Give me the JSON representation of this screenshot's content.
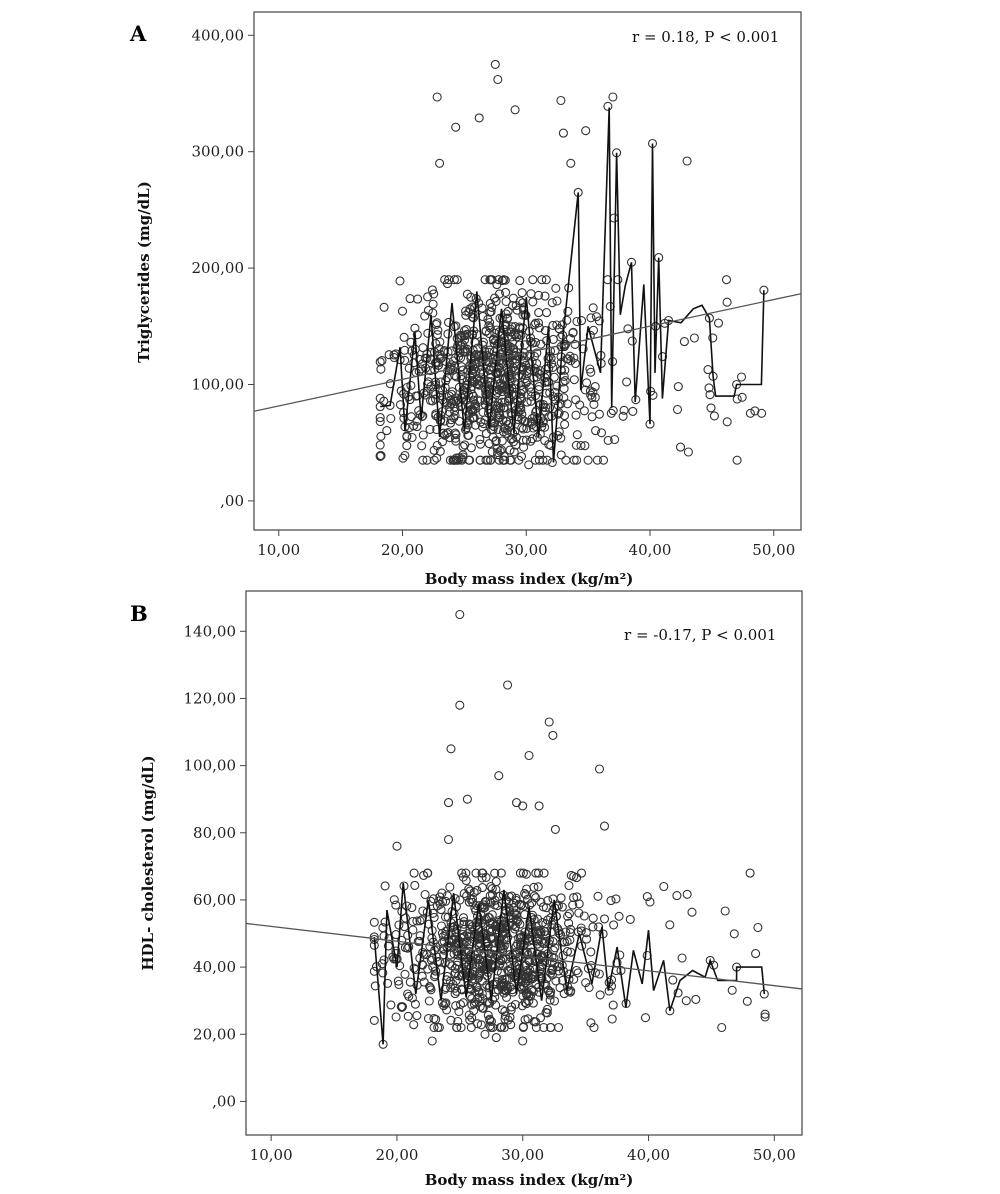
{
  "chart_data": [
    {
      "type": "scatter",
      "panel_label": "A",
      "annotation": "r = 0.18, P < 0.001",
      "xlabel": "Body mass index (kg/m²)",
      "ylabel": "Triglycerides (mg/dL)",
      "xlim": [
        8,
        52.2
      ],
      "ylim": [
        -25,
        420
      ],
      "xticks": [
        10,
        20,
        30,
        40,
        50
      ],
      "xtick_labels": [
        "10,00",
        "20,00",
        "30,00",
        "40,00",
        "50,00"
      ],
      "yticks": [
        0,
        100,
        200,
        300,
        400
      ],
      "ytick_labels": [
        ",00",
        "100,00",
        "200,00",
        "300,00",
        "400,00"
      ],
      "grid": false,
      "scatter_cloud": {
        "x_range": [
          18.2,
          49.3
        ],
        "x_center": 27.5,
        "y_core": [
          35,
          190
        ],
        "y_center": 105,
        "point_count": 900
      },
      "fit_line": {
        "x": [
          8,
          52.2
        ],
        "y": [
          77,
          178
        ]
      },
      "notable_points": [
        {
          "x": 27.5,
          "y": 375
        },
        {
          "x": 27.7,
          "y": 362
        },
        {
          "x": 22.8,
          "y": 347
        },
        {
          "x": 37.0,
          "y": 347
        },
        {
          "x": 32.8,
          "y": 344
        },
        {
          "x": 36.6,
          "y": 339
        },
        {
          "x": 29.1,
          "y": 336
        },
        {
          "x": 26.2,
          "y": 329
        },
        {
          "x": 24.3,
          "y": 321
        },
        {
          "x": 34.8,
          "y": 318
        },
        {
          "x": 33.0,
          "y": 316
        },
        {
          "x": 40.2,
          "y": 307
        },
        {
          "x": 37.3,
          "y": 299
        },
        {
          "x": 43.0,
          "y": 292
        },
        {
          "x": 23.0,
          "y": 290
        },
        {
          "x": 33.6,
          "y": 290
        },
        {
          "x": 34.2,
          "y": 265
        },
        {
          "x": 37.1,
          "y": 243
        },
        {
          "x": 38.5,
          "y": 205
        },
        {
          "x": 40.7,
          "y": 209
        },
        {
          "x": 49.2,
          "y": 181
        },
        {
          "x": 41.5,
          "y": 155
        },
        {
          "x": 44.8,
          "y": 157
        },
        {
          "x": 45.1,
          "y": 107
        },
        {
          "x": 47.0,
          "y": 100
        },
        {
          "x": 45.2,
          "y": 73
        },
        {
          "x": 43.1,
          "y": 42
        },
        {
          "x": 40.0,
          "y": 66
        },
        {
          "x": 18.2,
          "y": 81
        },
        {
          "x": 19.0,
          "y": 82
        },
        {
          "x": 19.8,
          "y": 189
        },
        {
          "x": 20.0,
          "y": 163
        },
        {
          "x": 30.2,
          "y": 31
        },
        {
          "x": 32.1,
          "y": 33
        },
        {
          "x": 35.0,
          "y": 35
        }
      ],
      "jagged_path": [
        {
          "x": 18.2,
          "y": 81
        },
        {
          "x": 19.0,
          "y": 82
        },
        {
          "x": 19.8,
          "y": 132
        },
        {
          "x": 20.2,
          "y": 60
        },
        {
          "x": 21.0,
          "y": 145
        },
        {
          "x": 21.5,
          "y": 70
        },
        {
          "x": 22.3,
          "y": 160
        },
        {
          "x": 23.0,
          "y": 55
        },
        {
          "x": 24.0,
          "y": 170
        },
        {
          "x": 25.0,
          "y": 60
        },
        {
          "x": 26.0,
          "y": 180
        },
        {
          "x": 27.0,
          "y": 62
        },
        {
          "x": 28.0,
          "y": 165
        },
        {
          "x": 29.0,
          "y": 58
        },
        {
          "x": 30.0,
          "y": 175
        },
        {
          "x": 31.0,
          "y": 55
        },
        {
          "x": 31.8,
          "y": 150
        },
        {
          "x": 32.2,
          "y": 33
        },
        {
          "x": 33.0,
          "y": 145
        },
        {
          "x": 34.2,
          "y": 265
        },
        {
          "x": 34.4,
          "y": 95
        },
        {
          "x": 35.0,
          "y": 150
        },
        {
          "x": 36.0,
          "y": 110
        },
        {
          "x": 36.7,
          "y": 338
        },
        {
          "x": 36.9,
          "y": 80
        },
        {
          "x": 37.3,
          "y": 299
        },
        {
          "x": 37.6,
          "y": 160
        },
        {
          "x": 38.0,
          "y": 185
        },
        {
          "x": 38.5,
          "y": 205
        },
        {
          "x": 38.8,
          "y": 85
        },
        {
          "x": 39.5,
          "y": 186
        },
        {
          "x": 40.0,
          "y": 66
        },
        {
          "x": 40.2,
          "y": 307
        },
        {
          "x": 40.4,
          "y": 110
        },
        {
          "x": 40.7,
          "y": 209
        },
        {
          "x": 41.0,
          "y": 88
        },
        {
          "x": 41.5,
          "y": 155
        },
        {
          "x": 42.5,
          "y": 153
        },
        {
          "x": 43.5,
          "y": 165
        },
        {
          "x": 44.2,
          "y": 168
        },
        {
          "x": 44.8,
          "y": 157
        },
        {
          "x": 45.1,
          "y": 107
        },
        {
          "x": 45.3,
          "y": 90
        },
        {
          "x": 46.8,
          "y": 90
        },
        {
          "x": 47.0,
          "y": 100
        },
        {
          "x": 49.0,
          "y": 100
        },
        {
          "x": 49.2,
          "y": 181
        }
      ]
    },
    {
      "type": "scatter",
      "panel_label": "B",
      "annotation": "r = -0.17, P < 0.001",
      "xlabel": "Body mass index (kg/m²)",
      "ylabel": "HDL- cholesterol (mg/dL)",
      "xlim": [
        8,
        52.2
      ],
      "ylim": [
        -10,
        152
      ],
      "xticks": [
        10,
        20,
        30,
        40,
        50
      ],
      "xtick_labels": [
        "10,00",
        "20,00",
        "30,00",
        "40,00",
        "50,00"
      ],
      "yticks": [
        0,
        20,
        40,
        60,
        80,
        100,
        120,
        140
      ],
      "ytick_labels": [
        ",00",
        "20,00",
        "40,00",
        "60,00",
        "80,00",
        "100,00",
        "120,00",
        "140,00"
      ],
      "grid": false,
      "scatter_cloud": {
        "x_range": [
          18.2,
          49.3
        ],
        "x_center": 28,
        "y_core": [
          22,
          68
        ],
        "y_center": 44,
        "point_count": 900
      },
      "fit_line": {
        "x": [
          8,
          52.2
        ],
        "y": [
          53,
          33.5
        ]
      },
      "notable_points": [
        {
          "x": 25.0,
          "y": 145
        },
        {
          "x": 28.8,
          "y": 124
        },
        {
          "x": 25.0,
          "y": 118
        },
        {
          "x": 32.1,
          "y": 113
        },
        {
          "x": 32.4,
          "y": 109
        },
        {
          "x": 24.3,
          "y": 105
        },
        {
          "x": 30.5,
          "y": 103
        },
        {
          "x": 36.1,
          "y": 99
        },
        {
          "x": 28.1,
          "y": 97
        },
        {
          "x": 25.6,
          "y": 90
        },
        {
          "x": 24.1,
          "y": 89
        },
        {
          "x": 29.5,
          "y": 89
        },
        {
          "x": 31.3,
          "y": 88
        },
        {
          "x": 30.0,
          "y": 88
        },
        {
          "x": 36.5,
          "y": 82
        },
        {
          "x": 32.6,
          "y": 81
        },
        {
          "x": 24.1,
          "y": 78
        },
        {
          "x": 20.0,
          "y": 76
        },
        {
          "x": 39.9,
          "y": 61
        },
        {
          "x": 18.9,
          "y": 17
        },
        {
          "x": 22.8,
          "y": 18
        },
        {
          "x": 30.0,
          "y": 18
        },
        {
          "x": 27.9,
          "y": 19
        },
        {
          "x": 27.0,
          "y": 20
        },
        {
          "x": 49.2,
          "y": 32
        },
        {
          "x": 47.0,
          "y": 40
        },
        {
          "x": 44.9,
          "y": 42
        },
        {
          "x": 43.0,
          "y": 30
        },
        {
          "x": 41.7,
          "y": 27
        },
        {
          "x": 18.2,
          "y": 49
        }
      ],
      "jagged_path": [
        {
          "x": 18.2,
          "y": 49
        },
        {
          "x": 18.9,
          "y": 17
        },
        {
          "x": 19.2,
          "y": 57
        },
        {
          "x": 20.0,
          "y": 40
        },
        {
          "x": 20.5,
          "y": 65
        },
        {
          "x": 21.5,
          "y": 32
        },
        {
          "x": 22.5,
          "y": 60
        },
        {
          "x": 23.5,
          "y": 30
        },
        {
          "x": 24.5,
          "y": 62
        },
        {
          "x": 25.5,
          "y": 31
        },
        {
          "x": 26.5,
          "y": 59
        },
        {
          "x": 27.5,
          "y": 30
        },
        {
          "x": 28.5,
          "y": 63
        },
        {
          "x": 29.5,
          "y": 32
        },
        {
          "x": 30.5,
          "y": 58
        },
        {
          "x": 31.5,
          "y": 30
        },
        {
          "x": 32.5,
          "y": 60
        },
        {
          "x": 33.5,
          "y": 33
        },
        {
          "x": 34.5,
          "y": 50
        },
        {
          "x": 35.5,
          "y": 35
        },
        {
          "x": 36.3,
          "y": 52
        },
        {
          "x": 36.8,
          "y": 33
        },
        {
          "x": 37.5,
          "y": 46
        },
        {
          "x": 38.2,
          "y": 28
        },
        {
          "x": 38.8,
          "y": 45
        },
        {
          "x": 39.5,
          "y": 35
        },
        {
          "x": 40.0,
          "y": 51
        },
        {
          "x": 40.4,
          "y": 33
        },
        {
          "x": 41.2,
          "y": 42
        },
        {
          "x": 41.7,
          "y": 27
        },
        {
          "x": 42.5,
          "y": 36
        },
        {
          "x": 43.5,
          "y": 39
        },
        {
          "x": 44.5,
          "y": 37
        },
        {
          "x": 44.9,
          "y": 42
        },
        {
          "x": 45.5,
          "y": 36
        },
        {
          "x": 47.0,
          "y": 36
        },
        {
          "x": 47.0,
          "y": 40
        },
        {
          "x": 49.0,
          "y": 40
        },
        {
          "x": 49.2,
          "y": 32
        }
      ]
    }
  ]
}
